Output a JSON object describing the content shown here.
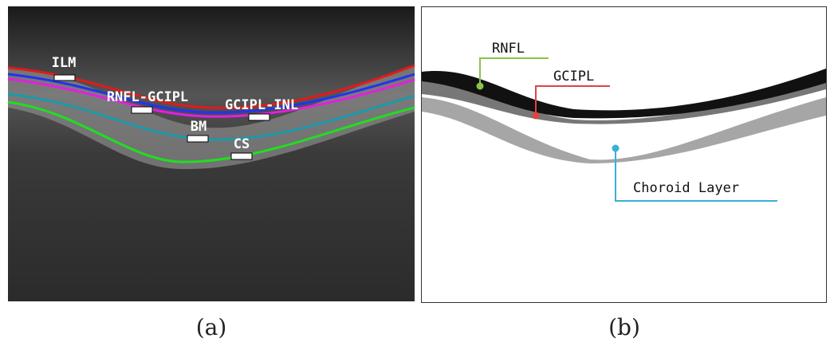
{
  "panels": [
    {
      "caption": "(a)",
      "labels": [
        "ILM",
        "RNFL-GCIPL",
        "GCIPL-INL",
        "BM",
        "CS"
      ]
    },
    {
      "caption": "(b)",
      "labels": [
        "RNFL",
        "GCIPL",
        "Choroid Layer"
      ]
    }
  ]
}
